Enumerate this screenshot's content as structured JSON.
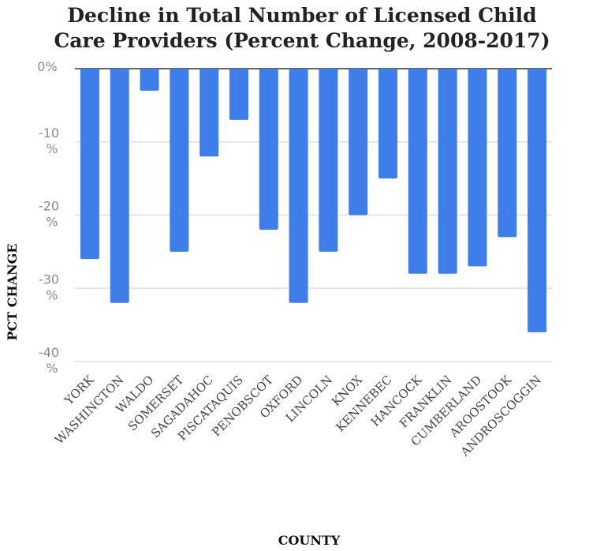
{
  "chart_data": {
    "type": "bar",
    "title_lines": [
      "Decline in Total Number of Licensed Child",
      "Care Providers (Percent Change, 2008-2017)"
    ],
    "xlabel": "COUNTY",
    "ylabel": "PCT CHANGE",
    "categories": [
      "YORK",
      "WASHINGTON",
      "WALDO",
      "SOMERSET",
      "SAGADAHOC",
      "PISCATAQUIS",
      "PENOBSCOT",
      "OXFORD",
      "LINCOLN",
      "KNOX",
      "KENNEBEC",
      "HANCOCK",
      "FRANKLIN",
      "CUMBERLAND",
      "AROOSTOOK",
      "ANDROSCOGGIN"
    ],
    "values": [
      -26,
      -32,
      -3,
      -25,
      -12,
      -7,
      -22,
      -32,
      -25,
      -20,
      -15,
      -28,
      -28,
      -27,
      -23,
      -36
    ],
    "ylim": [
      -40,
      0
    ],
    "yticks": [
      {
        "value": 0,
        "label": "0%"
      },
      {
        "value": -10,
        "label": "-10 %"
      },
      {
        "value": -20,
        "label": "-20 %"
      },
      {
        "value": -30,
        "label": "-30 %"
      },
      {
        "value": -40,
        "label": "-40 %"
      }
    ],
    "grid": true,
    "bar_color": "#3f7ee8",
    "grid_color": "#e6e6e6",
    "zero_line_color": "#333333"
  }
}
